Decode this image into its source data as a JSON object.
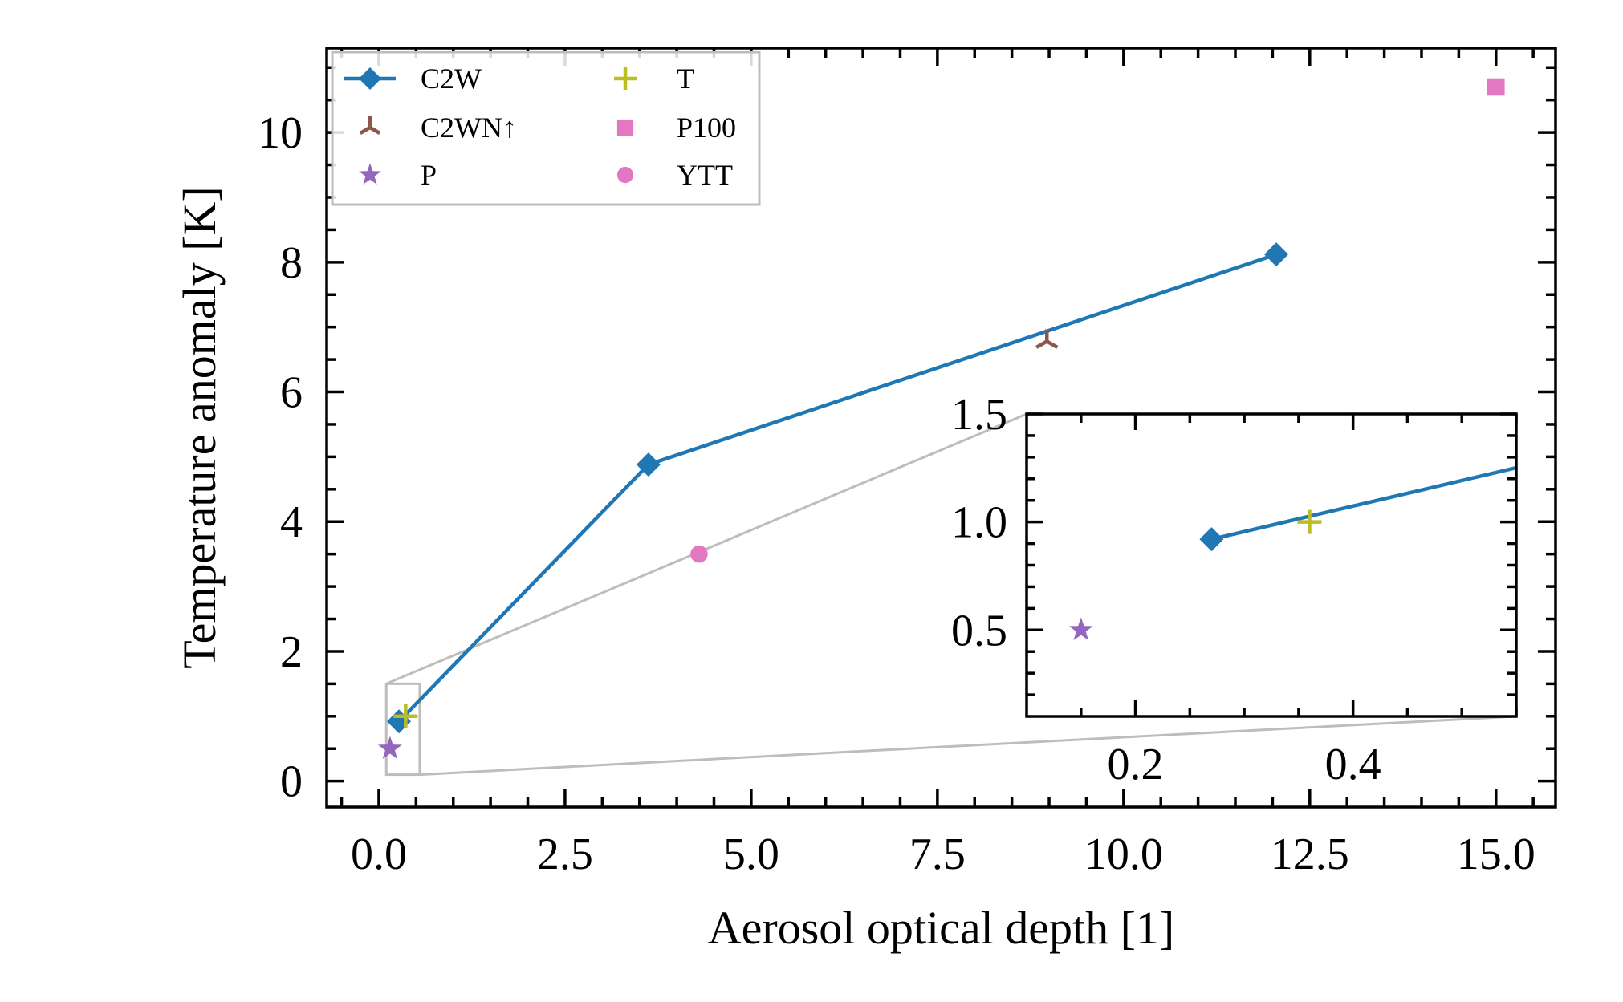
{
  "chart_data": {
    "type": "line",
    "xlabel": "Aerosol optical depth [1]",
    "ylabel": "Temperature anomaly [K]",
    "xlim": [
      -0.7,
      15.8
    ],
    "ylim": [
      -0.4,
      11.3
    ],
    "x_ticks": [
      0.0,
      2.5,
      5.0,
      7.5,
      10.0,
      12.5,
      15.0
    ],
    "x_tick_labels": [
      "0.0",
      "2.5",
      "5.0",
      "7.5",
      "10.0",
      "12.5",
      "15.0"
    ],
    "y_ticks": [
      0,
      2,
      4,
      6,
      8,
      10
    ],
    "y_tick_labels": [
      "0",
      "2",
      "4",
      "6",
      "8",
      "10"
    ],
    "grid": false,
    "legend": {
      "placement": "upper-left",
      "columns": 2
    },
    "series": [
      {
        "name": "C2W",
        "color": "#1f77b4",
        "marker": "diamond",
        "line": true,
        "points": [
          [
            0.27,
            0.92
          ],
          [
            3.62,
            4.88
          ],
          [
            12.05,
            8.12
          ]
        ]
      },
      {
        "name": "C2WN↑",
        "color": "#8c564b",
        "marker": "tri-down",
        "line": false,
        "points": [
          [
            8.97,
            6.78
          ]
        ]
      },
      {
        "name": "P",
        "color": "#9467bd",
        "marker": "star",
        "line": false,
        "points": [
          [
            0.15,
            0.5
          ]
        ]
      },
      {
        "name": "T",
        "color": "#bcbd22",
        "marker": "plus",
        "line": false,
        "points": [
          [
            0.36,
            1.0
          ]
        ]
      },
      {
        "name": "P100",
        "color": "#e377c2",
        "marker": "square",
        "line": false,
        "points": [
          [
            15.0,
            10.7
          ]
        ]
      },
      {
        "name": "YTT",
        "color": "#e377c2",
        "marker": "circle",
        "line": false,
        "points": [
          [
            4.3,
            3.5
          ]
        ]
      }
    ],
    "inset": {
      "xlim": [
        0.1,
        0.55
      ],
      "ylim": [
        0.1,
        1.5
      ],
      "x_ticks": [
        0.2,
        0.4
      ],
      "x_tick_labels": [
        "0.2",
        "0.4"
      ],
      "y_ticks": [
        0.5,
        1.0,
        1.5
      ],
      "y_tick_labels": [
        "0.5",
        "1.0",
        "1.5"
      ]
    }
  }
}
